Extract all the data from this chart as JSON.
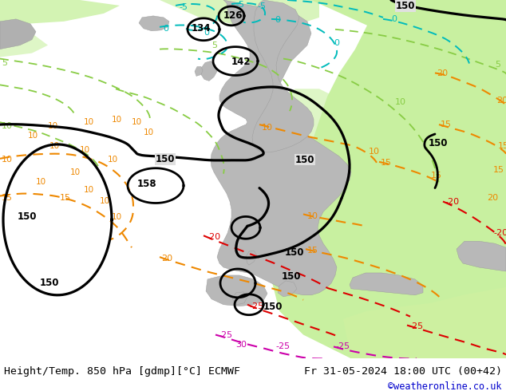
{
  "title_left": "Height/Temp. 850 hPa [gdmp][°C] ECMWF",
  "title_right": "Fr 31-05-2024 18:00 UTC (00+42)",
  "credit": "©weatheronline.co.uk",
  "bg_color": "#e8e8e8",
  "land_color": "#c8c8c8",
  "green_color": "#c8f0a0",
  "bottom_bar_color": "#d0d0d0",
  "credit_color": "#0000cc",
  "col_cyan": "#00bbbb",
  "col_lgreen": "#88cc44",
  "col_orange": "#ee8800",
  "col_red": "#dd0000",
  "col_magenta": "#cc00aa",
  "col_black": "#000000"
}
